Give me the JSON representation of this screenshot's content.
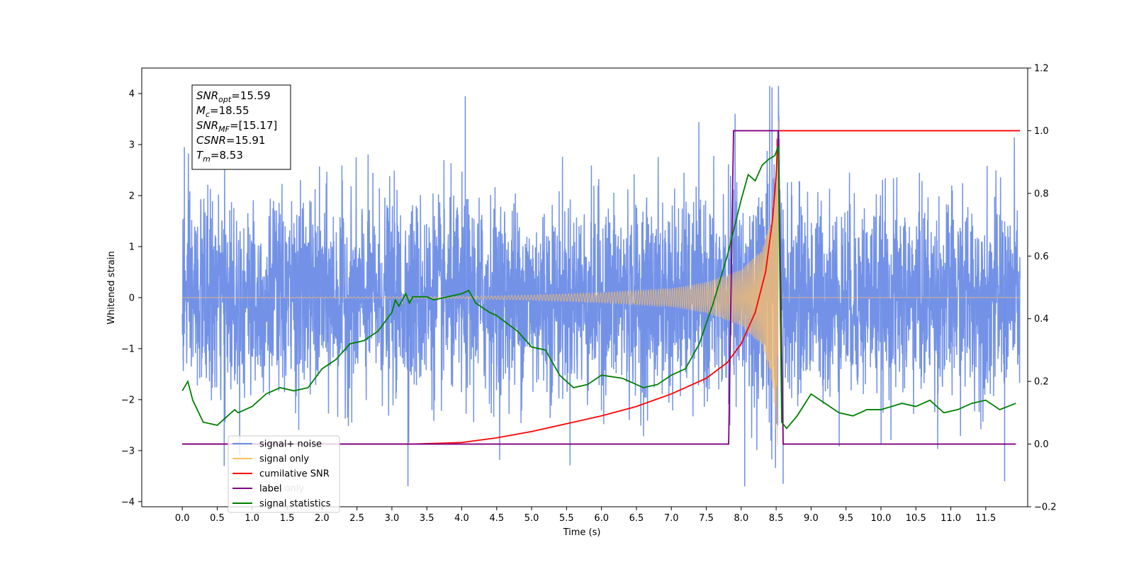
{
  "chart_data": {
    "type": "line",
    "xlabel": "Time (s)",
    "ylabel": "Whitened strain",
    "xlim": [
      -0.58,
      12.1
    ],
    "ylim": [
      -4.1,
      4.5
    ],
    "y2lim": [
      -0.2,
      1.2
    ],
    "x_ticks": [
      "0.0",
      "0.5",
      "1.0",
      "1.5",
      "2.0",
      "2.5",
      "3.0",
      "3.5",
      "4.0",
      "4.5",
      "5.0",
      "5.5",
      "6.0",
      "6.5",
      "7.0",
      "7.5",
      "8.0",
      "8.5",
      "9.0",
      "9.5",
      "10.0",
      "10.5",
      "11.0",
      "11.5"
    ],
    "y_ticks": [
      "4",
      "3",
      "2",
      "1",
      "0",
      "−1",
      "−2",
      "−3",
      "−4"
    ],
    "y2_ticks": [
      "1.2",
      "1.0",
      "0.8",
      "0.6",
      "0.4",
      "0.2",
      "0.0",
      "−0.2"
    ],
    "annotation": {
      "lines": [
        {
          "base": "SNR",
          "sub": "opt",
          "rest": "=15.59"
        },
        {
          "base": "M",
          "sub": "c",
          "rest": "=18.55"
        },
        {
          "base": "SNR",
          "sub": "MF",
          "rest": "=[15.17]"
        },
        {
          "base": "CSNR",
          "sub": "",
          "rest": "=15.91"
        },
        {
          "base": "T",
          "sub": "m",
          "rest": "=8.53"
        }
      ]
    },
    "legend": {
      "placement": "lower-left",
      "items": [
        {
          "label": "signal+ noise",
          "color": "#6c8ce6"
        },
        {
          "label": "signal only",
          "color": "#ffbf66"
        },
        {
          "label": "cumilative SNR",
          "color": "#ff0000"
        },
        {
          "label": "label",
          "color": "#800080"
        },
        {
          "label": "signal statistics",
          "color": "#008000"
        }
      ],
      "ghost_label": "label only"
    },
    "series": [
      {
        "name": "signal+ noise",
        "axis": "left",
        "color": "#6c8ce6",
        "description": "noisy strain, roughly unit variance over 0–12 s",
        "x_range": [
          0,
          11.99
        ],
        "peaks": [
          [
            0.03,
            2.95
          ],
          [
            4.05,
            3.95
          ],
          [
            8.44,
            4.12
          ],
          [
            0.6,
            -3.3
          ],
          [
            3.23,
            -3.7
          ],
          [
            8.05,
            -3.7
          ],
          [
            8.6,
            -3.65
          ],
          [
            11.77,
            -3.6
          ]
        ]
      },
      {
        "name": "signal only",
        "axis": "left",
        "color": "#ffbf66",
        "description": "chirp waveform; amplitude grows toward merger at 8.53 s",
        "merger_time": 8.53,
        "amplitude_x": [
          0,
          4.0,
          5.0,
          6.0,
          7.0,
          7.5,
          8.0,
          8.3,
          8.45,
          8.53,
          8.56
        ],
        "amplitude_y": [
          0.0,
          0.02,
          0.05,
          0.1,
          0.18,
          0.3,
          0.55,
          0.95,
          1.7,
          3.5,
          0.0
        ]
      },
      {
        "name": "cumilative SNR",
        "axis": "right",
        "color": "#ff0000",
        "x": [
          3.3,
          4.0,
          4.5,
          5.0,
          5.5,
          6.0,
          6.5,
          7.0,
          7.5,
          7.8,
          8.0,
          8.2,
          8.35,
          8.45,
          8.5,
          8.53,
          8.56,
          11.99
        ],
        "y": [
          0.0,
          0.005,
          0.02,
          0.04,
          0.065,
          0.09,
          0.12,
          0.16,
          0.21,
          0.26,
          0.32,
          0.42,
          0.55,
          0.72,
          0.86,
          1.0,
          1.0,
          1.0
        ]
      },
      {
        "name": "label",
        "axis": "right",
        "color": "#800080",
        "x": [
          0.0,
          7.82,
          7.89,
          8.53,
          8.6,
          11.93
        ],
        "y": [
          0.0,
          0.0,
          1.0,
          1.0,
          0.0,
          0.0
        ]
      },
      {
        "name": "signal statistics",
        "axis": "right",
        "color": "#008000",
        "x": [
          0.0,
          0.08,
          0.15,
          0.3,
          0.5,
          0.6,
          0.75,
          0.8,
          1.0,
          1.2,
          1.4,
          1.6,
          1.8,
          2.0,
          2.2,
          2.4,
          2.6,
          2.8,
          3.0,
          3.05,
          3.1,
          3.2,
          3.25,
          3.3,
          3.5,
          3.6,
          3.8,
          4.0,
          4.1,
          4.2,
          4.4,
          4.5,
          4.8,
          5.0,
          5.2,
          5.4,
          5.6,
          5.8,
          6.0,
          6.3,
          6.5,
          6.6,
          6.8,
          7.0,
          7.2,
          7.4,
          7.6,
          7.8,
          8.0,
          8.1,
          8.2,
          8.3,
          8.4,
          8.48,
          8.53,
          8.58,
          8.65,
          8.8,
          9.0,
          9.2,
          9.4,
          9.6,
          9.8,
          10.0,
          10.3,
          10.5,
          10.7,
          10.9,
          11.1,
          11.3,
          11.5,
          11.7,
          11.93
        ],
        "y": [
          0.17,
          0.2,
          0.14,
          0.07,
          0.06,
          0.08,
          0.11,
          0.1,
          0.12,
          0.16,
          0.18,
          0.17,
          0.18,
          0.24,
          0.27,
          0.32,
          0.33,
          0.36,
          0.42,
          0.46,
          0.44,
          0.48,
          0.45,
          0.47,
          0.47,
          0.46,
          0.47,
          0.48,
          0.49,
          0.45,
          0.42,
          0.41,
          0.36,
          0.31,
          0.3,
          0.22,
          0.18,
          0.19,
          0.22,
          0.21,
          0.19,
          0.18,
          0.19,
          0.22,
          0.24,
          0.32,
          0.45,
          0.6,
          0.78,
          0.86,
          0.84,
          0.89,
          0.91,
          0.92,
          0.95,
          0.07,
          0.05,
          0.09,
          0.16,
          0.13,
          0.1,
          0.09,
          0.11,
          0.11,
          0.13,
          0.12,
          0.14,
          0.1,
          0.11,
          0.13,
          0.14,
          0.11,
          0.13
        ]
      }
    ]
  }
}
